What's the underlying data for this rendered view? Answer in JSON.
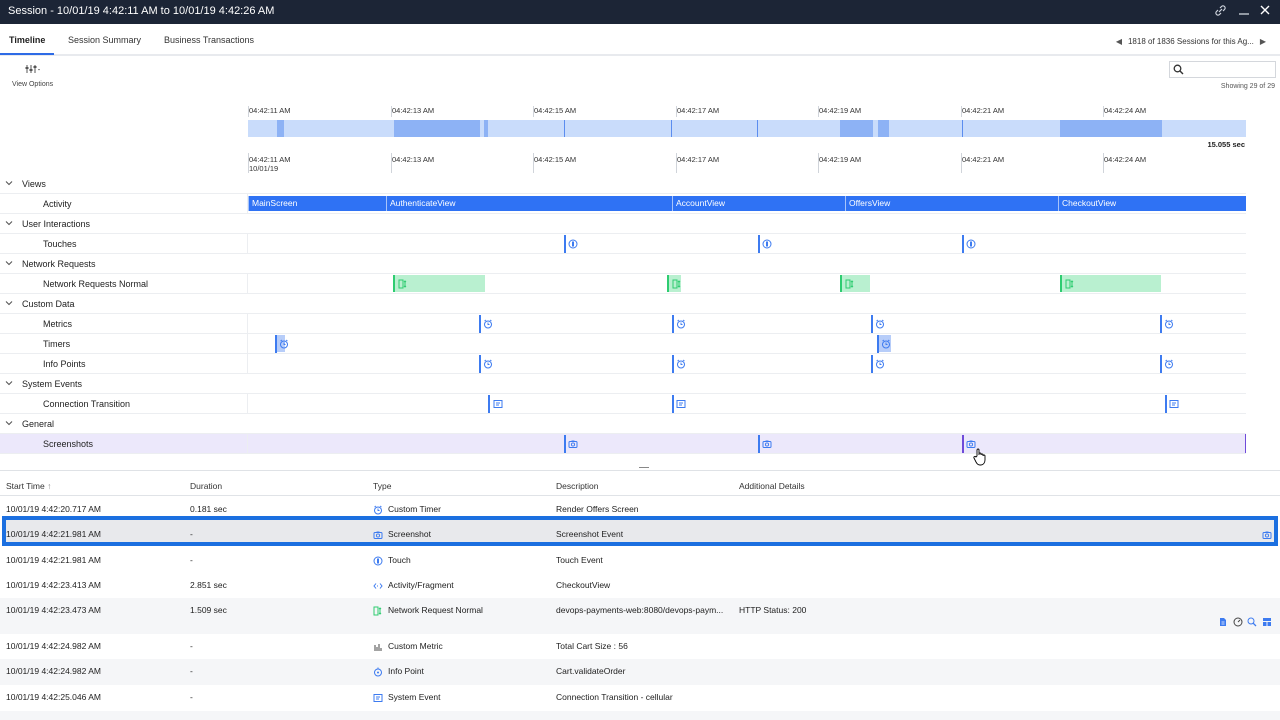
{
  "window": {
    "title": "Session - 10/01/19 4:42:11 AM to 10/01/19 4:42:26 AM",
    "controls": [
      "link-icon",
      "minimize-icon",
      "close-icon"
    ]
  },
  "tabs": [
    {
      "label": "Timeline",
      "active": true
    },
    {
      "label": "Session Summary",
      "active": false
    },
    {
      "label": "Business Transactions",
      "active": false
    }
  ],
  "pager": {
    "text": "1818 of 1836 Sessions for this Ag..."
  },
  "view_options": {
    "label": "View Options"
  },
  "search": {
    "placeholder": "",
    "value": ""
  },
  "showing": "Showing 29 of 29",
  "axis_ticks": [
    "04:42:11 AM",
    "04:42:13 AM",
    "04:42:15 AM",
    "04:42:17 AM",
    "04:42:19 AM",
    "04:42:21 AM",
    "04:42:24 AM"
  ],
  "axis_date": "10/01/19",
  "duration": "15.055 sec",
  "lanes": {
    "views": "Views",
    "activity": "Activity",
    "user_interactions": "User Interactions",
    "touches": "Touches",
    "network_requests": "Network Requests",
    "network_requests_normal": "Network Requests Normal",
    "custom_data": "Custom Data",
    "metrics": "Metrics",
    "timers": "Timers",
    "info_points": "Info Points",
    "system_events": "System Events",
    "connection_transition": "Connection Transition",
    "general": "General",
    "screenshots": "Screenshots"
  },
  "activities": [
    "MainScreen",
    "AuthenticateView",
    "AccountView",
    "OffersView",
    "CheckoutView"
  ],
  "table": {
    "columns": [
      "Start Time",
      "Duration",
      "Type",
      "Description",
      "Additional Details"
    ],
    "rows": [
      {
        "start": "10/01/19 4:42:20.717 AM",
        "duration": "0.181 sec",
        "type": "Custom Timer",
        "icon": "timer-icon",
        "description": "Render Offers Screen",
        "details": ""
      },
      {
        "start": "10/01/19 4:42:21.981 AM",
        "duration": "-",
        "type": "Screenshot",
        "icon": "camera-icon",
        "description": "Screenshot Event",
        "details": "",
        "selected": true
      },
      {
        "start": "10/01/19 4:42:21.981 AM",
        "duration": "-",
        "type": "Touch",
        "icon": "touch-icon",
        "description": "Touch Event",
        "details": ""
      },
      {
        "start": "10/01/19 4:42:23.413 AM",
        "duration": "2.851 sec",
        "type": "Activity/Fragment",
        "icon": "code-icon",
        "description": "CheckoutView",
        "details": ""
      },
      {
        "start": "10/01/19 4:42:23.473 AM",
        "duration": "1.509 sec",
        "type": "Network Request Normal",
        "icon": "network-icon",
        "description": "devops-payments-web:8080/devops-paym...",
        "details": "HTTP Status: 200"
      },
      {
        "start": "10/01/19 4:42:24.982 AM",
        "duration": "-",
        "type": "Custom Metric",
        "icon": "metric-icon",
        "description": "Total Cart Size : 56",
        "details": ""
      },
      {
        "start": "10/01/19 4:42:24.982 AM",
        "duration": "-",
        "type": "Info Point",
        "icon": "info-point-icon",
        "description": "Cart.validateOrder",
        "details": ""
      },
      {
        "start": "10/01/19 4:42:25.046 AM",
        "duration": "-",
        "type": "System Event",
        "icon": "system-event-icon",
        "description": "Connection Transition - cellular",
        "details": ""
      }
    ]
  },
  "colors": {
    "titlebar": "#1c2536",
    "accent": "#2f72f4",
    "selection_border": "#1b6fe0",
    "network_fill": "#b9f0d0",
    "network_border": "#2ecc71",
    "selected_lane": "#ece8fb"
  }
}
